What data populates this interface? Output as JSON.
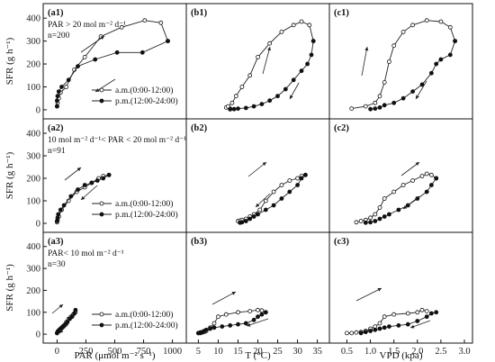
{
  "figure": {
    "y_axis_label": "SFR (g h⁻¹)",
    "x_axis_labels": [
      "PAR (μmol m⁻² s⁻¹)",
      "T (°C)",
      "VPD (kpa)"
    ],
    "legend_am": "a.m.(0:00-12:00)",
    "legend_pm": "p.m.(12:00-24:00)",
    "colors": {
      "am_marker": "#ffffff",
      "pm_marker": "#111111",
      "line": "#222222"
    }
  },
  "chart_data": [
    {
      "id": "a1",
      "panel_label": "(a1)",
      "notes": [
        "PAR > 20 mol m⁻² d⁻¹",
        "n=200"
      ],
      "type": "line",
      "x_var": "PAR",
      "xlim": [
        -50,
        1050
      ],
      "ylim": [
        -20,
        440
      ],
      "legend": true,
      "series": [
        {
          "name": "a.m.(0:00-12:00)",
          "marker": "open",
          "x": [
            0,
            5,
            15,
            30,
            80,
            150,
            240,
            380,
            560,
            760,
            900,
            960
          ],
          "y": [
            15,
            30,
            50,
            75,
            100,
            175,
            230,
            320,
            360,
            390,
            380,
            300
          ]
        },
        {
          "name": "p.m.(12:00-24:00)",
          "marker": "filled",
          "x": [
            960,
            740,
            520,
            330,
            180,
            100,
            40,
            15,
            5,
            0,
            0
          ],
          "y": [
            300,
            250,
            250,
            220,
            190,
            130,
            100,
            80,
            60,
            40,
            15
          ]
        }
      ]
    },
    {
      "id": "b1",
      "panel_label": "(b1)",
      "notes": [],
      "type": "line",
      "x_var": "T",
      "xlim": [
        4,
        36
      ],
      "ylim": [
        -20,
        440
      ],
      "legend": false,
      "series": [
        {
          "name": "a.m.",
          "marker": "open",
          "x": [
            13,
            12,
            12.5,
            13.5,
            14.5,
            16,
            18,
            20,
            23,
            26,
            29,
            31,
            33,
            34
          ],
          "y": [
            5,
            10,
            15,
            30,
            60,
            100,
            150,
            230,
            290,
            340,
            370,
            385,
            370,
            300
          ]
        },
        {
          "name": "p.m.",
          "marker": "filled",
          "x": [
            34,
            33.5,
            32.5,
            31,
            29,
            27,
            25,
            23,
            21,
            19,
            17,
            15,
            14,
            13
          ],
          "y": [
            300,
            240,
            200,
            170,
            130,
            90,
            60,
            40,
            25,
            15,
            8,
            5,
            3,
            2
          ]
        }
      ]
    },
    {
      "id": "c1",
      "panel_label": "(c1)",
      "notes": [],
      "type": "line",
      "x_var": "VPD",
      "xlim": [
        0.3,
        3.0
      ],
      "ylim": [
        -20,
        440
      ],
      "legend": false,
      "series": [
        {
          "name": "a.m.",
          "marker": "open",
          "x": [
            0.6,
            0.9,
            1.1,
            1.2,
            1.3,
            1.4,
            1.5,
            1.7,
            1.9,
            2.2,
            2.5,
            2.7,
            2.8
          ],
          "y": [
            5,
            15,
            30,
            60,
            120,
            210,
            280,
            340,
            370,
            390,
            385,
            360,
            300
          ]
        },
        {
          "name": "p.m.",
          "marker": "filled",
          "x": [
            2.8,
            2.7,
            2.5,
            2.4,
            2.3,
            2.1,
            1.9,
            1.7,
            1.5,
            1.3,
            1.2,
            1.1,
            1.0
          ],
          "y": [
            300,
            240,
            220,
            200,
            160,
            110,
            80,
            50,
            30,
            20,
            10,
            5,
            3
          ]
        }
      ]
    },
    {
      "id": "a2",
      "panel_label": "(a2)",
      "notes": [
        "10 mol m⁻² d⁻¹< PAR < 20 mol m⁻² d⁻¹",
        "n=91"
      ],
      "type": "line",
      "x_var": "PAR",
      "xlim": [
        -50,
        1050
      ],
      "ylim": [
        -20,
        440
      ],
      "legend": true,
      "series": [
        {
          "name": "a.m.(0:00-12:00)",
          "marker": "open",
          "x": [
            0,
            5,
            15,
            40,
            100,
            170,
            240,
            300,
            360,
            400,
            450
          ],
          "y": [
            5,
            15,
            30,
            60,
            100,
            140,
            160,
            180,
            200,
            210,
            215
          ]
        },
        {
          "name": "p.m.(12:00-24:00)",
          "marker": "filled",
          "x": [
            450,
            400,
            350,
            300,
            240,
            180,
            120,
            60,
            30,
            10,
            5,
            0
          ],
          "y": [
            215,
            200,
            190,
            180,
            170,
            150,
            120,
            80,
            60,
            40,
            25,
            10
          ]
        }
      ]
    },
    {
      "id": "b2",
      "panel_label": "(b2)",
      "notes": [],
      "type": "line",
      "x_var": "T",
      "xlim": [
        4,
        36
      ],
      "ylim": [
        -20,
        440
      ],
      "legend": false,
      "series": [
        {
          "name": "a.m.",
          "marker": "open",
          "x": [
            15,
            15.5,
            16,
            17,
            18,
            19,
            20.5,
            22,
            24,
            26,
            28,
            30,
            31,
            32
          ],
          "y": [
            10,
            12,
            15,
            20,
            30,
            40,
            60,
            100,
            140,
            170,
            190,
            200,
            210,
            215
          ]
        },
        {
          "name": "p.m.",
          "marker": "filled",
          "x": [
            32,
            31,
            30,
            28,
            26,
            24,
            22,
            20,
            19,
            18,
            17,
            16,
            15.5
          ],
          "y": [
            215,
            200,
            170,
            140,
            110,
            80,
            60,
            40,
            30,
            20,
            10,
            5,
            3
          ]
        }
      ]
    },
    {
      "id": "c2",
      "panel_label": "(c2)",
      "notes": [],
      "type": "line",
      "x_var": "VPD",
      "xlim": [
        0.3,
        3.0
      ],
      "ylim": [
        -20,
        440
      ],
      "legend": false,
      "series": [
        {
          "name": "a.m.",
          "marker": "open",
          "x": [
            0.7,
            0.8,
            0.9,
            1.0,
            1.1,
            1.2,
            1.3,
            1.5,
            1.7,
            1.9,
            2.1,
            2.2,
            2.3,
            2.4
          ],
          "y": [
            5,
            10,
            15,
            25,
            40,
            70,
            110,
            140,
            170,
            190,
            210,
            220,
            215,
            200
          ]
        },
        {
          "name": "p.m.",
          "marker": "filled",
          "x": [
            2.4,
            2.3,
            2.2,
            2.0,
            1.8,
            1.6,
            1.4,
            1.3,
            1.2,
            1.1,
            1.0,
            0.9
          ],
          "y": [
            200,
            170,
            140,
            110,
            80,
            60,
            40,
            30,
            20,
            10,
            5,
            3
          ]
        }
      ]
    },
    {
      "id": "a3",
      "panel_label": "(a3)",
      "notes": [
        "PAR< 10 mol m⁻² d⁻¹",
        "n=30"
      ],
      "type": "line",
      "x_var": "PAR",
      "xlim": [
        -50,
        1050
      ],
      "ylim": [
        -20,
        440
      ],
      "legend": true,
      "series": [
        {
          "name": "a.m.(0:00-12:00)",
          "marker": "open",
          "x": [
            0,
            5,
            10,
            20,
            40,
            60,
            80,
            100,
            120,
            140,
            160
          ],
          "y": [
            5,
            10,
            15,
            20,
            30,
            40,
            55,
            70,
            80,
            90,
            100
          ]
        },
        {
          "name": "p.m.(12:00-24:00)",
          "marker": "filled",
          "x": [
            160,
            150,
            130,
            110,
            90,
            70,
            50,
            30,
            20,
            10,
            5,
            0
          ],
          "y": [
            110,
            95,
            80,
            70,
            55,
            45,
            35,
            25,
            20,
            15,
            10,
            5
          ]
        }
      ]
    },
    {
      "id": "b3",
      "panel_label": "(b3)",
      "notes": [],
      "type": "line",
      "x_var": "T",
      "xlim": [
        4,
        36
      ],
      "ylim": [
        -20,
        440
      ],
      "legend": false,
      "series": [
        {
          "name": "a.m.",
          "marker": "open",
          "x": [
            5,
            5.5,
            6,
            6.5,
            7,
            8,
            9,
            10,
            12,
            15,
            18,
            20,
            21,
            22
          ],
          "y": [
            5,
            5,
            8,
            10,
            15,
            30,
            50,
            80,
            90,
            100,
            105,
            110,
            108,
            100
          ]
        },
        {
          "name": "p.m.",
          "marker": "filled",
          "x": [
            22,
            21,
            20,
            19,
            17,
            15,
            13,
            11,
            9,
            8,
            7,
            6.5,
            6,
            5.5,
            5
          ],
          "y": [
            100,
            90,
            80,
            65,
            50,
            45,
            40,
            35,
            30,
            25,
            20,
            15,
            10,
            8,
            5
          ]
        }
      ]
    },
    {
      "id": "c3",
      "panel_label": "(c3)",
      "notes": [],
      "type": "line",
      "x_var": "VPD",
      "xlim": [
        0.3,
        3.0
      ],
      "ylim": [
        -20,
        440
      ],
      "legend": false,
      "series": [
        {
          "name": "a.m.",
          "marker": "open",
          "x": [
            0.5,
            0.6,
            0.7,
            0.8,
            0.9,
            1.0,
            1.1,
            1.2,
            1.3,
            1.5,
            1.8,
            2.0,
            2.1,
            2.2
          ],
          "y": [
            5,
            5,
            8,
            10,
            15,
            25,
            35,
            50,
            80,
            90,
            95,
            100,
            110,
            105
          ]
        },
        {
          "name": "p.m.",
          "marker": "filled",
          "x": [
            2.4,
            2.3,
            2.2,
            2.0,
            1.8,
            1.6,
            1.4,
            1.3,
            1.2,
            1.1,
            1.0,
            0.9,
            0.8
          ],
          "y": [
            100,
            95,
            80,
            60,
            45,
            40,
            35,
            30,
            25,
            20,
            15,
            10,
            5
          ]
        }
      ]
    }
  ],
  "axes": {
    "y_ticks": [
      0,
      100,
      200,
      300,
      400
    ],
    "x_ticks": {
      "PAR": [
        0,
        250,
        500,
        750,
        1000
      ],
      "T": [
        5,
        10,
        15,
        20,
        25,
        30,
        35
      ],
      "VPD": [
        0.5,
        1.0,
        1.5,
        2.0,
        2.5,
        3.0
      ]
    },
    "x_tick_labels": {
      "PAR": [
        "0",
        "250",
        "500",
        "750",
        "1000"
      ],
      "T": [
        "5",
        "10",
        "15",
        "20",
        "25",
        "30",
        "35"
      ],
      "VPD": [
        "0.5",
        "1.0",
        "1.5",
        "2.0",
        "2.5",
        "3.0"
      ]
    }
  }
}
